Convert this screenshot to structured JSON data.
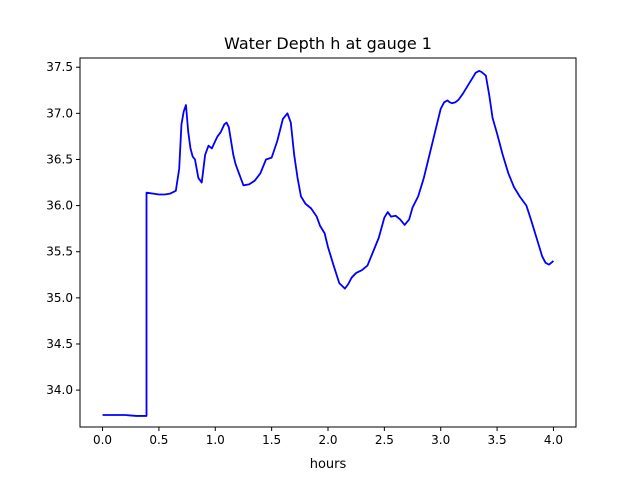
{
  "chart_data": {
    "type": "line",
    "title": "Water Depth h at gauge 1",
    "xlabel": "hours",
    "ylabel": "",
    "xlim": [
      -0.2,
      4.2
    ],
    "ylim": [
      33.6,
      37.6
    ],
    "xticks": [
      0.0,
      0.5,
      1.0,
      1.5,
      2.0,
      2.5,
      3.0,
      3.5,
      4.0
    ],
    "xtick_labels": [
      "0.0",
      "0.5",
      "1.0",
      "1.5",
      "2.0",
      "2.5",
      "3.0",
      "3.5",
      "4.0"
    ],
    "yticks": [
      34.0,
      34.5,
      35.0,
      35.5,
      36.0,
      36.5,
      37.0,
      37.5
    ],
    "ytick_labels": [
      "34.0",
      "34.5",
      "35.0",
      "35.5",
      "36.0",
      "36.5",
      "37.0",
      "37.5"
    ],
    "grid": false,
    "series": [
      {
        "color": "#0000ff",
        "x": [
          0.0,
          0.1,
          0.2,
          0.3,
          0.39,
          0.39,
          0.45,
          0.5,
          0.55,
          0.6,
          0.65,
          0.68,
          0.7,
          0.72,
          0.74,
          0.76,
          0.78,
          0.8,
          0.82,
          0.85,
          0.88,
          0.91,
          0.94,
          0.97,
          1.0,
          1.02,
          1.05,
          1.08,
          1.1,
          1.12,
          1.14,
          1.16,
          1.18,
          1.21,
          1.25,
          1.3,
          1.35,
          1.4,
          1.45,
          1.5,
          1.55,
          1.6,
          1.64,
          1.67,
          1.7,
          1.73,
          1.76,
          1.8,
          1.85,
          1.9,
          1.93,
          1.97,
          2.0,
          2.05,
          2.1,
          2.15,
          2.18,
          2.21,
          2.25,
          2.3,
          2.35,
          2.4,
          2.45,
          2.5,
          2.53,
          2.56,
          2.6,
          2.64,
          2.68,
          2.72,
          2.75,
          2.8,
          2.85,
          2.9,
          2.95,
          3.0,
          3.03,
          3.06,
          3.08,
          3.1,
          3.13,
          3.16,
          3.2,
          3.25,
          3.28,
          3.31,
          3.34,
          3.36,
          3.4,
          3.43,
          3.46,
          3.5,
          3.55,
          3.6,
          3.65,
          3.7,
          3.73,
          3.76,
          3.8,
          3.85,
          3.9,
          3.93,
          3.96,
          4.0
        ],
        "y": [
          33.73,
          33.73,
          33.73,
          33.72,
          33.72,
          36.14,
          36.13,
          36.12,
          36.12,
          36.13,
          36.16,
          36.4,
          36.88,
          37.02,
          37.09,
          36.8,
          36.62,
          36.53,
          36.5,
          36.3,
          36.25,
          36.55,
          36.65,
          36.62,
          36.7,
          36.75,
          36.8,
          36.88,
          36.9,
          36.85,
          36.7,
          36.55,
          36.45,
          36.35,
          36.22,
          36.23,
          36.27,
          36.35,
          36.5,
          36.52,
          36.7,
          36.94,
          37.0,
          36.9,
          36.55,
          36.3,
          36.1,
          36.02,
          35.97,
          35.88,
          35.78,
          35.7,
          35.55,
          35.35,
          35.16,
          35.1,
          35.15,
          35.22,
          35.27,
          35.3,
          35.35,
          35.5,
          35.65,
          35.87,
          35.93,
          35.88,
          35.89,
          35.85,
          35.79,
          35.85,
          35.98,
          36.1,
          36.3,
          36.55,
          36.8,
          37.05,
          37.12,
          37.14,
          37.12,
          37.11,
          37.12,
          37.15,
          37.22,
          37.32,
          37.38,
          37.44,
          37.46,
          37.45,
          37.41,
          37.2,
          36.95,
          36.78,
          36.55,
          36.35,
          36.2,
          36.1,
          36.05,
          36.0,
          35.85,
          35.65,
          35.45,
          35.38,
          35.36,
          35.4
        ]
      }
    ]
  }
}
